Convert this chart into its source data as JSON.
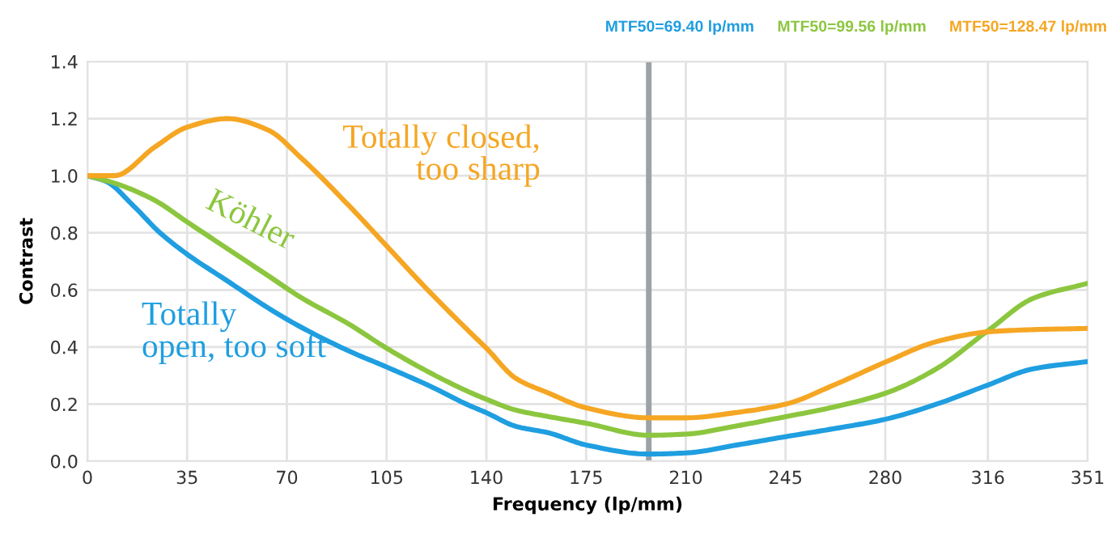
{
  "chart_data": {
    "type": "line",
    "xlabel": "Frequency (lp/mm)",
    "ylabel": "Contrast",
    "xlim": [
      0,
      351
    ],
    "ylim": [
      0,
      1.4
    ],
    "xticks": [
      0,
      35,
      70,
      105,
      140,
      175,
      210,
      245,
      280,
      316,
      351
    ],
    "yticks": [
      {
        "value": 0,
        "label": "0.0"
      },
      {
        "value": 0.2,
        "label": "0.2"
      },
      {
        "value": 0.4,
        "label": "0.4"
      },
      {
        "value": 0.6,
        "label": "0.6"
      },
      {
        "value": 0.8,
        "label": "0.8"
      },
      {
        "value": 1.0,
        "label": "1.0"
      },
      {
        "value": 1.2,
        "label": "1.2"
      },
      {
        "value": 1.4,
        "label": "1.4"
      }
    ],
    "grid": true,
    "legend": false,
    "marker": "none",
    "line_style": "solid",
    "ref_lines": [
      {
        "axis": "x",
        "value": 197,
        "color": "#9ba3a9"
      }
    ],
    "annotations": [
      "MTF50=69.40 lp/mm",
      "MTF50=99.56 lp/mm",
      "MTF50=128.47 lp/mm"
    ],
    "series": [
      {
        "name": "Totally\nopen, too soft",
        "color": "#1f9ee0",
        "x": [
          0,
          6.6,
          16.1,
          25.5,
          35,
          49.2,
          63.4,
          74.7,
          91.8,
          105,
          120,
          133.4,
          140,
          150.4,
          162,
          175,
          197,
          210,
          228,
          245,
          262,
          280,
          298,
          316,
          332,
          351
        ],
        "values": [
          1.0,
          0.98,
          0.895,
          0.8,
          0.725,
          0.631,
          0.537,
          0.471,
          0.386,
          0.33,
          0.264,
          0.198,
          0.17,
          0.122,
          0.099,
          0.057,
          0.025,
          0.029,
          0.057,
          0.086,
          0.114,
          0.147,
          0.2,
          0.267,
          0.324,
          0.349
        ]
      },
      {
        "name": "Köhler",
        "color": "#8cc63f",
        "x": [
          0,
          9.5,
          23.6,
          35,
          49.2,
          63.4,
          74.7,
          91.8,
          105,
          120,
          133.4,
          140,
          150.4,
          162,
          175,
          197,
          210,
          228,
          245,
          262,
          280,
          298,
          316,
          332,
          351
        ],
        "values": [
          1.0,
          0.974,
          0.914,
          0.838,
          0.744,
          0.65,
          0.575,
          0.48,
          0.396,
          0.311,
          0.245,
          0.217,
          0.179,
          0.156,
          0.133,
          0.091,
          0.095,
          0.124,
          0.156,
          0.19,
          0.238,
          0.324,
          0.457,
          0.571,
          0.623
        ]
      },
      {
        "name": "Totally closed,\ntoo sharp",
        "color": "#f5a623",
        "x": [
          0,
          9.5,
          23.6,
          35,
          49.2,
          63.4,
          74.7,
          91.8,
          105,
          120,
          133.4,
          140,
          150.4,
          162,
          175,
          197,
          210,
          228,
          245,
          262,
          280,
          298,
          316,
          332,
          351
        ],
        "values": [
          1.0,
          1.0,
          1.1,
          1.17,
          1.2,
          1.16,
          1.065,
          0.895,
          0.754,
          0.594,
          0.46,
          0.396,
          0.29,
          0.238,
          0.187,
          0.152,
          0.152,
          0.171,
          0.2,
          0.267,
          0.347,
          0.419,
          0.453,
          0.461,
          0.465
        ]
      }
    ]
  }
}
